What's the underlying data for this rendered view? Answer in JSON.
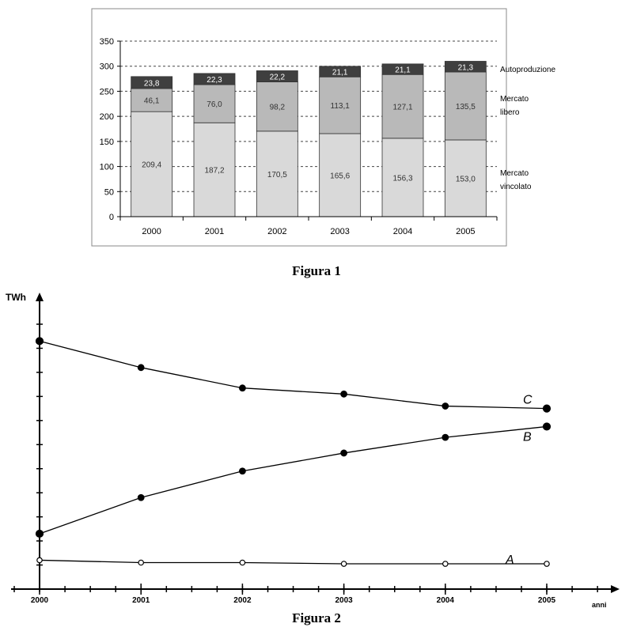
{
  "figure1": {
    "caption": "Figura 1",
    "chart_data": {
      "type": "bar",
      "stacked": true,
      "categories": [
        "2000",
        "2001",
        "2002",
        "2003",
        "2004",
        "2005"
      ],
      "series": [
        {
          "name": "Mercato vincolato",
          "values": [
            209.4,
            187.2,
            170.5,
            165.6,
            156.3,
            153.0
          ],
          "labels": [
            "209,4",
            "187,2",
            "170,5",
            "165,6",
            "156,3",
            "153,0"
          ],
          "color": "#d9d9d9"
        },
        {
          "name": "Mercato libero",
          "values": [
            46.1,
            76.0,
            98.2,
            113.1,
            127.1,
            135.5
          ],
          "labels": [
            "46,1",
            "76,0",
            "98,2",
            "113,1",
            "127,1",
            "135,5"
          ],
          "color": "#b9b9b9"
        },
        {
          "name": "Autoproduzione",
          "values": [
            23.8,
            22.3,
            22.2,
            21.1,
            21.1,
            21.3
          ],
          "labels": [
            "23,8",
            "22,3",
            "22,2",
            "21,1",
            "21,1",
            "21,3"
          ],
          "color": "#3f3f3f"
        }
      ],
      "legend_lines": [
        [
          "Autoproduzione"
        ],
        [
          "Mercato",
          "libero"
        ],
        [
          "Mercato",
          "vincolato"
        ]
      ],
      "legend_placement": "right",
      "ylim": [
        0,
        350
      ],
      "yticks": [
        0,
        50,
        100,
        150,
        200,
        250,
        300,
        350
      ],
      "grid": "dashed horizontal",
      "title": "",
      "xlabel": "",
      "ylabel": ""
    }
  },
  "figure2": {
    "caption": "Figura 2",
    "chart_data": {
      "type": "line",
      "ylabel": "TWh",
      "xlabel": "anni",
      "x": [
        "2000",
        "2001",
        "2002",
        "2003",
        "2004",
        "2005"
      ],
      "ylim": [
        0,
        11
      ],
      "y_tick_count": 11,
      "series": [
        {
          "name": "C",
          "values": [
            10.3,
            9.2,
            8.35,
            8.1,
            7.6,
            7.5
          ],
          "marker": "filled"
        },
        {
          "name": "B",
          "values": [
            2.3,
            3.8,
            4.9,
            5.65,
            6.3,
            6.75
          ],
          "marker": "filled"
        },
        {
          "name": "A",
          "values": [
            1.2,
            1.1,
            1.1,
            1.05,
            1.05,
            1.05
          ],
          "marker": "open"
        }
      ]
    }
  }
}
